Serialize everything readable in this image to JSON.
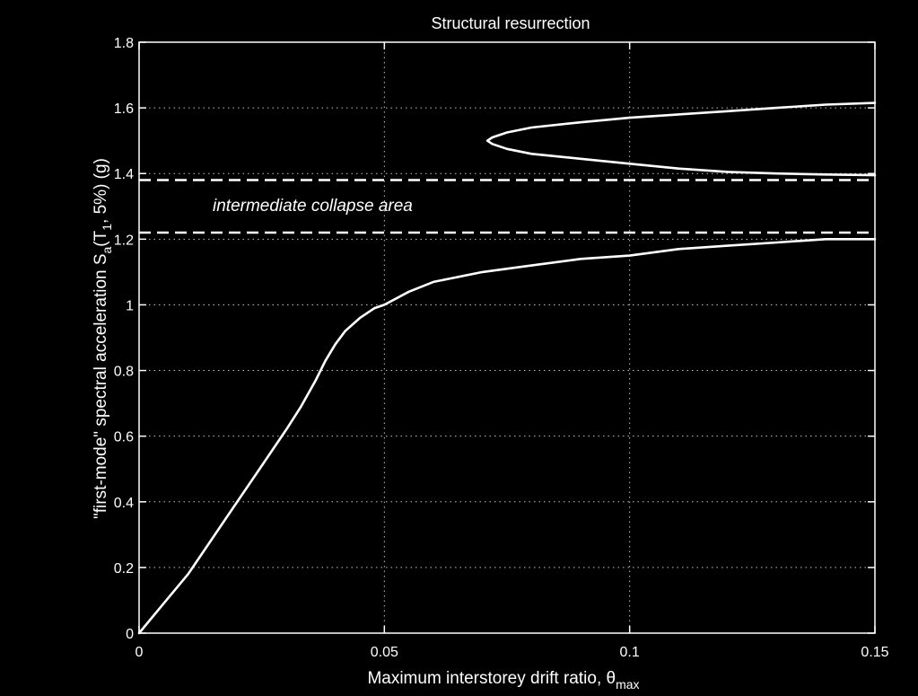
{
  "chart_data": {
    "type": "line",
    "title": "Structural resurrection",
    "xlabel": {
      "main": "Maximum interstorey drift ratio, ",
      "symbol": "θ",
      "sub": "max"
    },
    "ylabel": {
      "prefix": "\"first-mode\" spectral acceleration  S",
      "sub_a": "a",
      "mid": "(T",
      "sub_1": "1",
      "suffix": ", 5%)  (g)"
    },
    "xlim": [
      0,
      0.15
    ],
    "ylim": [
      0,
      1.8
    ],
    "x_ticks": [
      0,
      0.05,
      0.1,
      0.15
    ],
    "x_tick_labels": [
      "0",
      "0.05",
      "0.1",
      "0.15"
    ],
    "y_ticks": [
      0,
      0.2,
      0.4,
      0.6,
      0.8,
      1.0,
      1.2,
      1.4,
      1.6,
      1.8
    ],
    "y_tick_labels": [
      "0",
      "0.2",
      "0.4",
      "0.6",
      "0.8",
      "1",
      "1.2",
      "1.4",
      "1.6",
      "1.8"
    ],
    "grid": true,
    "series": [
      {
        "style": "solid",
        "x": [
          0,
          0.005,
          0.01,
          0.015,
          0.02,
          0.025,
          0.03,
          0.033,
          0.036,
          0.038,
          0.04,
          0.042,
          0.045,
          0.048,
          0.05,
          0.055,
          0.06,
          0.07,
          0.08,
          0.09,
          0.1,
          0.11,
          0.12,
          0.13,
          0.14,
          0.15
        ],
        "y": [
          0,
          0.09,
          0.18,
          0.29,
          0.4,
          0.51,
          0.62,
          0.69,
          0.77,
          0.83,
          0.88,
          0.92,
          0.96,
          0.99,
          1.0,
          1.04,
          1.07,
          1.1,
          1.12,
          1.14,
          1.15,
          1.17,
          1.18,
          1.19,
          1.2,
          1.2
        ]
      },
      {
        "style": "solid",
        "x": [
          0.15,
          0.14,
          0.13,
          0.12,
          0.11,
          0.1,
          0.09,
          0.08,
          0.075,
          0.072,
          0.071,
          0.072,
          0.075,
          0.08,
          0.09,
          0.1,
          0.11,
          0.12,
          0.13,
          0.14,
          0.15
        ],
        "y": [
          1.395,
          1.397,
          1.4,
          1.405,
          1.415,
          1.43,
          1.445,
          1.46,
          1.475,
          1.49,
          1.5,
          1.51,
          1.525,
          1.54,
          1.556,
          1.57,
          1.58,
          1.59,
          1.6,
          1.61,
          1.615
        ]
      },
      {
        "style": "dashed",
        "x": [
          0,
          0.15
        ],
        "y": [
          1.38,
          1.38
        ]
      },
      {
        "style": "dashed",
        "x": [
          0,
          0.15
        ],
        "y": [
          1.22,
          1.22
        ]
      }
    ],
    "annotations": [
      {
        "text": "intermediate collapse area",
        "x": 0.015,
        "y": 1.3
      }
    ]
  },
  "colors": {
    "background": "#000000",
    "foreground": "#ffffff",
    "grid": "#bfbfbf"
  }
}
